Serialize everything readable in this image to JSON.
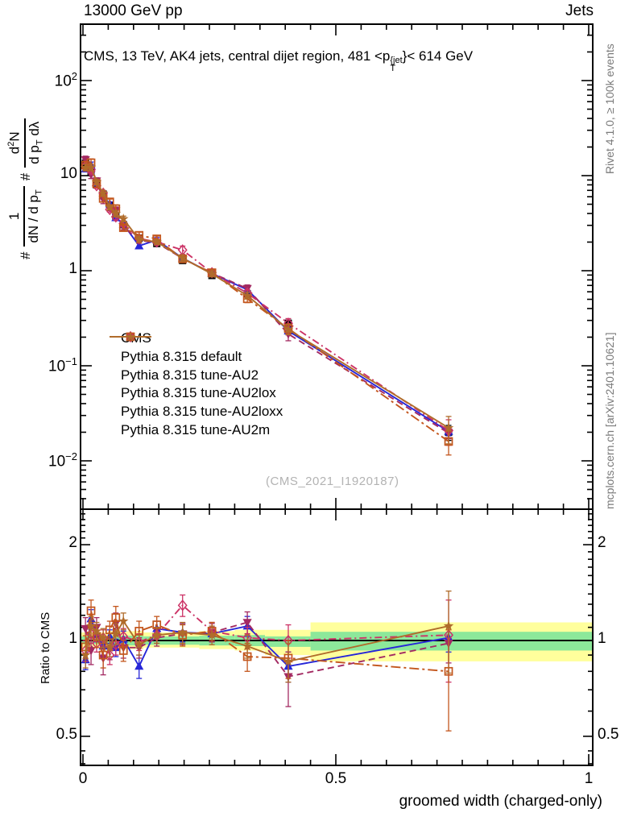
{
  "header": {
    "left": "13000 GeV pp",
    "right": "Jets"
  },
  "title_parts": {
    "pre": "CMS, 13 TeV, AK4 jets, central dijet region, 481 <p",
    "sup": "{jet",
    "sub": "T",
    "post": "}< 614 GeV"
  },
  "ylabel_parts": {
    "hash1": "#",
    "num1": "1",
    "den1": "dN / d p",
    "den1_sub": "T",
    "hash2": "#",
    "num2_pre": "d",
    "num2_sup": "2",
    "num2_post": "N",
    "den2": "d p",
    "den2_sub": "T",
    "den2_post": " dλ"
  },
  "ratio_ylabel": "Ratio to CMS",
  "xlabel": "groomed width (charged-only)",
  "watermark": "(CMS_2021_I1920187)",
  "side_notes": {
    "top": "Rivet 4.1.0, ≥ 100k events",
    "bottom": "mcplots.cern.ch [arXiv:2401.10621]"
  },
  "chart_data": {
    "type": "line",
    "title": "CMS, 13 TeV, AK4 jets, central dijet region, 481 < pT{jet} < 614 GeV",
    "xlabel": "groomed width (charged-only)",
    "ylabel": "# 1/(dN/dpT) # d2N/(dpT dλ)",
    "ylabel_ratio": "Ratio to CMS",
    "legend_position": "middle-left",
    "log_y": true,
    "x_range": [
      0,
      1
    ],
    "y_main_range": [
      0.0031,
      390
    ],
    "y_ratio_range": [
      0.405,
      2.59
    ],
    "x": [
      0.005,
      0.016,
      0.027,
      0.04,
      0.053,
      0.065,
      0.08,
      0.111,
      0.146,
      0.197,
      0.255,
      0.325,
      0.406,
      0.723
    ],
    "cms": {
      "label": "CMS",
      "color": "#000000",
      "marker": "square-filled",
      "line": "none",
      "values": [
        13.5,
        11.0,
        8.0,
        6.4,
        4.9,
        3.8,
        3.05,
        2.2,
        1.93,
        1.28,
        0.89,
        0.57,
        0.28,
        0.02
      ],
      "err_frac": [
        0.05,
        0.05,
        0.04,
        0.04,
        0.04,
        0.04,
        0.04,
        0.04,
        0.04,
        0.05,
        0.05,
        0.06,
        0.08,
        0.18
      ]
    },
    "series": [
      {
        "name": "Pythia 8.315 default",
        "color": "#2626d8",
        "marker": "triangle-up",
        "line": "solid",
        "ratio": [
          0.87,
          1.17,
          1.05,
          0.96,
          1.03,
          0.95,
          1.01,
          0.83,
          1.09,
          1.06,
          1.05,
          1.11,
          0.83,
          1.02
        ],
        "ratio_err": [
          0.06,
          0.08,
          0.06,
          0.06,
          0.05,
          0.06,
          0.06,
          0.07,
          0.06,
          0.07,
          0.06,
          0.08,
          0.09,
          0.1
        ]
      },
      {
        "name": "Pythia 8.315 tune-AU2",
        "color": "#a32a62",
        "marker": "triangle-down",
        "line": "dash",
        "ratio": [
          1.09,
          0.93,
          1.1,
          0.88,
          0.94,
          1.13,
          0.95,
          0.95,
          1.02,
          1.05,
          1.06,
          1.14,
          0.77,
          0.98
        ],
        "ratio_err": [
          0.09,
          0.09,
          0.08,
          0.1,
          0.07,
          0.09,
          0.07,
          0.07,
          0.06,
          0.08,
          0.07,
          0.09,
          0.15,
          0.13
        ]
      },
      {
        "name": "Pythia 8.315 tune-AU2lox",
        "color": "#cc3366",
        "marker": "diamond-open",
        "line": "dashdot",
        "ratio": [
          0.93,
          1.05,
          0.98,
          1.02,
          0.9,
          0.97,
          1.03,
          0.99,
          1.04,
          1.29,
          1.07,
          1.02,
          1.0,
          1.04
        ],
        "ratio_err": [
          0.07,
          0.07,
          0.06,
          0.06,
          0.06,
          0.07,
          0.06,
          0.06,
          0.06,
          0.1,
          0.07,
          0.08,
          0.12,
          0.3
        ]
      },
      {
        "name": "Pythia 8.315 tune-AU2loxx",
        "color": "#c3561d",
        "marker": "square-open",
        "line": "longdashdot",
        "ratio": [
          0.955,
          1.24,
          1.03,
          0.9,
          1.08,
          1.18,
          0.93,
          1.07,
          1.12,
          1.04,
          1.07,
          0.89,
          0.88,
          0.8
        ],
        "ratio_err": [
          0.08,
          0.1,
          0.08,
          0.08,
          0.07,
          0.1,
          0.07,
          0.08,
          0.07,
          0.08,
          0.07,
          0.09,
          0.12,
          0.28
        ]
      },
      {
        "name": "Pythia 8.315 tune-AU2m",
        "color": "#b06c2b",
        "marker": "star",
        "line": "solid",
        "ratio": [
          0.9,
          1.11,
          1.07,
          1.02,
          0.95,
          1.05,
          1.15,
          0.97,
          1.04,
          1.06,
          1.04,
          0.96,
          0.86,
          1.11
        ],
        "ratio_err": [
          0.08,
          0.08,
          0.07,
          0.07,
          0.06,
          0.08,
          0.07,
          0.07,
          0.06,
          0.08,
          0.07,
          0.08,
          0.12,
          0.32
        ]
      }
    ],
    "ratio_bands": [
      {
        "x0": 0.0,
        "x1": 0.05,
        "yellow": [
          0.95,
          1.06
        ],
        "green": [
          0.975,
          1.03
        ]
      },
      {
        "x0": 0.05,
        "x1": 0.12,
        "yellow": [
          0.94,
          1.07
        ],
        "green": [
          0.965,
          1.035
        ]
      },
      {
        "x0": 0.12,
        "x1": 0.23,
        "yellow": [
          0.95,
          1.06
        ],
        "green": [
          0.97,
          1.03
        ]
      },
      {
        "x0": 0.23,
        "x1": 0.3,
        "yellow": [
          0.94,
          1.07
        ],
        "green": [
          0.965,
          1.035
        ]
      },
      {
        "x0": 0.3,
        "x1": 0.36,
        "yellow": [
          0.93,
          1.08
        ],
        "green": [
          0.96,
          1.04
        ]
      },
      {
        "x0": 0.36,
        "x1": 0.45,
        "yellow": [
          0.9,
          1.08
        ],
        "green": [
          0.955,
          1.03
        ]
      },
      {
        "x0": 0.45,
        "x1": 1.0,
        "yellow": [
          0.86,
          1.14
        ],
        "green": [
          0.93,
          1.065
        ]
      }
    ],
    "band_colors": {
      "yellow": "#ffff9c",
      "green": "#8ce89a"
    },
    "axes": {
      "x_majors": [
        {
          "v": 0,
          "label": "0"
        },
        {
          "v": 0.5,
          "label": "0.5"
        },
        {
          "v": 1,
          "label": "1"
        }
      ],
      "x_minor_step": 0.05,
      "y_main_majors": [
        {
          "v": 100,
          "label": "10^{2}"
        },
        {
          "v": 10,
          "label": "10"
        },
        {
          "v": 1,
          "label": "1"
        },
        {
          "v": 0.1,
          "label": "10^{-1}"
        },
        {
          "v": 0.01,
          "label": "10^{-2}"
        }
      ],
      "y_ratio_majors": [
        {
          "v": 2,
          "label": "2"
        },
        {
          "v": 1,
          "label": "1"
        },
        {
          "v": 0.5,
          "label": "0.5"
        }
      ],
      "y_ratio_minors": [
        0.41,
        0.45,
        0.6,
        0.7,
        0.8,
        0.9,
        1.1,
        1.2,
        1.3,
        1.4,
        1.5,
        1.6,
        1.7,
        1.8,
        1.9,
        2.1,
        2.2,
        2.3,
        2.4,
        2.5
      ]
    }
  }
}
